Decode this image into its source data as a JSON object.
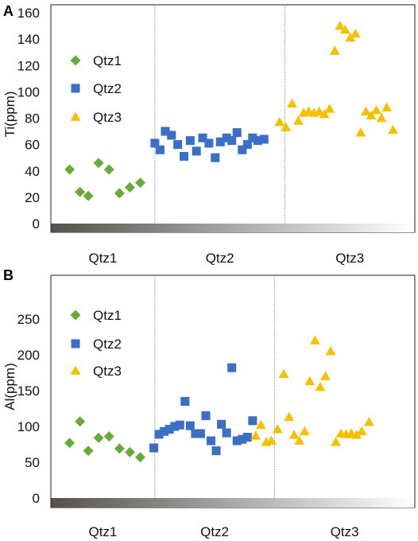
{
  "colors": {
    "qtz1": "#6aaa3a",
    "qtz2": "#3a6fc4",
    "qtz3": "#f5c000",
    "axis": "#222222",
    "divider": "#777777",
    "bar_dark": "#5a5550",
    "bar_light": "#ffffff"
  },
  "chart_data": [
    {
      "panel": "A",
      "type": "scatter",
      "ylabel": "Ti(ppm)",
      "ylim": [
        0,
        160
      ],
      "yticks": [
        "0",
        "20",
        "40",
        "60",
        "80",
        "100",
        "120",
        "140",
        "160"
      ],
      "categories": [
        "Qtz1",
        "Qtz2",
        "Qtz3"
      ],
      "xlim": [
        0,
        35
      ],
      "dividers": [
        10,
        22.5
      ],
      "legend": {
        "placement": "left",
        "entries": [
          "Qtz1",
          "Qtz2",
          "Qtz3"
        ]
      },
      "grid": false,
      "series": [
        {
          "name": "Qtz1",
          "marker": "diamond",
          "points": [
            [
              1.8,
              41
            ],
            [
              2.8,
              24
            ],
            [
              3.6,
              21
            ],
            [
              4.6,
              46
            ],
            [
              5.6,
              41
            ],
            [
              6.6,
              23
            ],
            [
              7.6,
              27.5
            ],
            [
              8.6,
              31
            ]
          ]
        },
        {
          "name": "Qtz2",
          "marker": "square",
          "points": [
            [
              10.0,
              61
            ],
            [
              10.5,
              56
            ],
            [
              11.0,
              70
            ],
            [
              11.6,
              67
            ],
            [
              12.2,
              60
            ],
            [
              12.8,
              51
            ],
            [
              13.4,
              63
            ],
            [
              14.0,
              55
            ],
            [
              14.6,
              65
            ],
            [
              15.2,
              61
            ],
            [
              15.8,
              50
            ],
            [
              16.3,
              62
            ],
            [
              16.9,
              65
            ],
            [
              17.4,
              63
            ],
            [
              17.9,
              69
            ],
            [
              18.4,
              56
            ],
            [
              18.9,
              60
            ],
            [
              19.4,
              65
            ],
            [
              19.9,
              63
            ],
            [
              20.5,
              64
            ]
          ]
        },
        {
          "name": "Qtz3",
          "marker": "triangle",
          "points": [
            [
              22.0,
              77
            ],
            [
              22.6,
              73
            ],
            [
              23.2,
              91
            ],
            [
              23.8,
              78
            ],
            [
              24.3,
              84
            ],
            [
              24.8,
              85
            ],
            [
              25.3,
              84
            ],
            [
              25.8,
              85
            ],
            [
              26.3,
              83
            ],
            [
              26.8,
              87
            ],
            [
              27.3,
              131
            ],
            [
              27.8,
              150
            ],
            [
              28.3,
              147
            ],
            [
              28.8,
              141
            ],
            [
              29.3,
              144
            ],
            [
              29.8,
              69
            ],
            [
              30.3,
              85
            ],
            [
              30.8,
              82
            ],
            [
              31.3,
              86
            ],
            [
              31.8,
              80
            ],
            [
              32.3,
              88
            ],
            [
              32.9,
              71
            ]
          ]
        }
      ]
    },
    {
      "panel": "B",
      "type": "scatter",
      "ylabel": "Al(ppm)",
      "ylim": [
        0,
        300
      ],
      "yticks": [
        "0",
        "50",
        "100",
        "150",
        "200",
        "250"
      ],
      "categories": [
        "Qtz1",
        "Qtz2",
        "Qtz3"
      ],
      "xlim": [
        0,
        35
      ],
      "dividers": [
        10,
        21.5
      ],
      "legend": {
        "placement": "left",
        "entries": [
          "Qtz1",
          "Qtz2",
          "Qtz3"
        ]
      },
      "grid": false,
      "series": [
        {
          "name": "Qtz1",
          "marker": "diamond",
          "points": [
            [
              1.8,
              77
            ],
            [
              2.8,
              107
            ],
            [
              3.6,
              66
            ],
            [
              4.6,
              84
            ],
            [
              5.6,
              86
            ],
            [
              6.6,
              69
            ],
            [
              7.6,
              64
            ],
            [
              8.6,
              57
            ]
          ]
        },
        {
          "name": "Qtz2",
          "marker": "square",
          "points": [
            [
              9.9,
              70
            ],
            [
              10.4,
              89
            ],
            [
              10.9,
              93
            ],
            [
              11.4,
              96
            ],
            [
              11.9,
              100
            ],
            [
              12.4,
              102
            ],
            [
              12.9,
              135
            ],
            [
              13.4,
              101
            ],
            [
              13.9,
              90
            ],
            [
              14.4,
              90
            ],
            [
              14.9,
              115
            ],
            [
              15.4,
              80
            ],
            [
              15.9,
              66
            ],
            [
              16.4,
              103
            ],
            [
              16.9,
              91
            ],
            [
              17.4,
              182
            ],
            [
              17.9,
              80
            ],
            [
              18.4,
              82
            ],
            [
              18.9,
              85
            ],
            [
              19.4,
              108
            ]
          ]
        },
        {
          "name": "Qtz3",
          "marker": "triangle",
          "points": [
            [
              19.7,
              87
            ],
            [
              20.2,
              102
            ],
            [
              20.7,
              78
            ],
            [
              21.2,
              80
            ],
            [
              21.8,
              96
            ],
            [
              22.4,
              173
            ],
            [
              22.9,
              113
            ],
            [
              23.4,
              88
            ],
            [
              23.9,
              80
            ],
            [
              24.4,
              93
            ],
            [
              24.9,
              163
            ],
            [
              25.4,
              220
            ],
            [
              25.9,
              155
            ],
            [
              26.4,
              170
            ],
            [
              26.9,
              205
            ],
            [
              27.4,
              78
            ],
            [
              27.9,
              90
            ],
            [
              28.4,
              89
            ],
            [
              28.9,
              90
            ],
            [
              29.4,
              88
            ],
            [
              29.9,
              93
            ],
            [
              30.6,
              106
            ]
          ]
        }
      ]
    }
  ]
}
